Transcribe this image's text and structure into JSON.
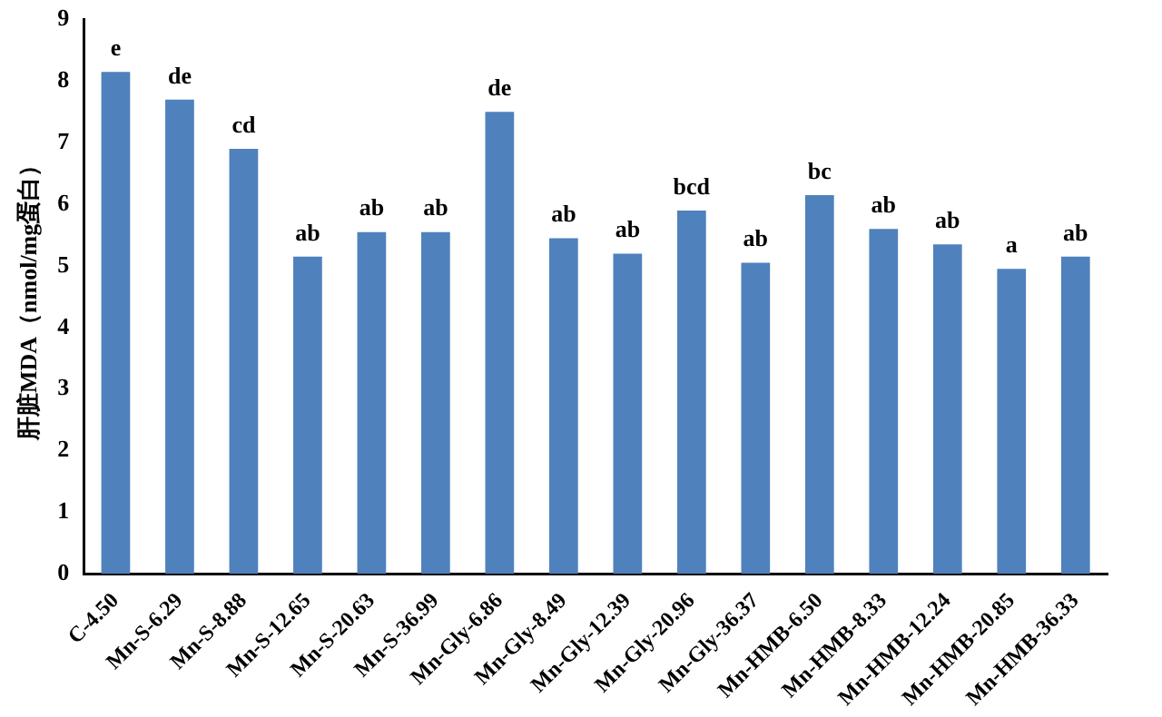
{
  "chart_data": {
    "type": "bar",
    "ylabel": "肝脏MDA（nmol/mg蛋白）",
    "categories": [
      "C-4.50",
      "Mn-S-6.29",
      "Mn-S-8.88",
      "Mn-S-12.65",
      "Mn-S-20.63",
      "Mn-S-36.99",
      "Mn-Gly-6.86",
      "Mn-Gly-8.49",
      "Mn-Gly-12.39",
      "Mn-Gly-20.96",
      "Mn-Gly-36.37",
      "Mn-HMB-6.50",
      "Mn-HMB-8.33",
      "Mn-HMB-12.24",
      "Mn-HMB-20.85",
      "Mn-HMB-36.33"
    ],
    "values": [
      8.15,
      7.7,
      6.9,
      5.15,
      5.55,
      5.55,
      7.5,
      5.45,
      5.2,
      5.9,
      5.05,
      6.15,
      5.6,
      5.35,
      4.95,
      5.15
    ],
    "color": "#4f81bd",
    "ylim": [
      0,
      9
    ],
    "yticks": [
      0,
      1,
      2,
      3,
      4,
      5,
      6,
      7,
      8,
      9
    ],
    "grid": false,
    "legend": false,
    "annotations": [
      {
        "text": "e",
        "x": "C-4.50",
        "y": 8.15
      },
      {
        "text": "de",
        "x": "Mn-S-6.29",
        "y": 7.7
      },
      {
        "text": "cd",
        "x": "Mn-S-8.88",
        "y": 6.9
      },
      {
        "text": "ab",
        "x": "Mn-S-12.65",
        "y": 5.15
      },
      {
        "text": "ab",
        "x": "Mn-S-20.63",
        "y": 5.55
      },
      {
        "text": "ab",
        "x": "Mn-S-36.99",
        "y": 5.55
      },
      {
        "text": "de",
        "x": "Mn-Gly-6.86",
        "y": 7.5
      },
      {
        "text": "ab",
        "x": "Mn-Gly-8.49",
        "y": 5.45
      },
      {
        "text": "ab",
        "x": "Mn-Gly-12.39",
        "y": 5.2
      },
      {
        "text": "bcd",
        "x": "Mn-Gly-20.96",
        "y": 5.9
      },
      {
        "text": "ab",
        "x": "Mn-Gly-36.37",
        "y": 5.05
      },
      {
        "text": "bc",
        "x": "Mn-HMB-6.50",
        "y": 6.15
      },
      {
        "text": "ab",
        "x": "Mn-HMB-8.33",
        "y": 5.6
      },
      {
        "text": "ab",
        "x": "Mn-HMB-12.24",
        "y": 5.35
      },
      {
        "text": "a",
        "x": "Mn-HMB-20.85",
        "y": 4.95
      },
      {
        "text": "ab",
        "x": "Mn-HMB-36.33",
        "y": 5.15
      }
    ]
  }
}
